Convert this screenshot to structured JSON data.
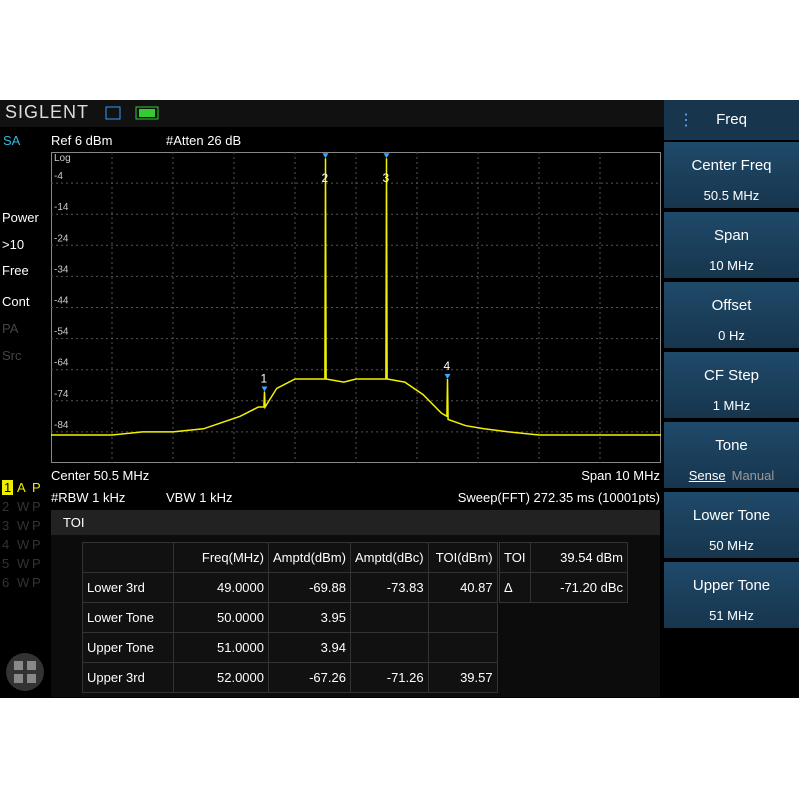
{
  "header": {
    "brand": "SIGLENT"
  },
  "left_panel": {
    "mode": "SA",
    "items": [
      "Power",
      ">10",
      "Free",
      "Cont",
      "PA",
      "Src"
    ],
    "traces": [
      [
        "1",
        "A",
        "P"
      ],
      [
        "2",
        "W",
        "P"
      ],
      [
        "3",
        "W",
        "P"
      ],
      [
        "4",
        "W",
        "P"
      ],
      [
        "5",
        "W",
        "P"
      ],
      [
        "6",
        "W",
        "P"
      ]
    ]
  },
  "settings": {
    "ref": "Ref  6 dBm",
    "atten": "#Atten  26 dB",
    "center": "Center  50.5 MHz",
    "span": "Span  10 MHz",
    "rbw": "#RBW  1 kHz",
    "vbw": "VBW  1 kHz",
    "sweep": "Sweep(FFT)  272.35 ms (10001pts)"
  },
  "plot": {
    "scale": "Log",
    "ylim": [
      -94,
      6
    ],
    "yticks": [
      -4,
      -14,
      -24,
      -34,
      -44,
      -54,
      -64,
      -74,
      -84
    ],
    "xlim": [
      45.5,
      55.5
    ],
    "color": "#f2f200",
    "trace": {
      "x": [
        45.5,
        46,
        46.5,
        47,
        47.5,
        48,
        48.3,
        48.6,
        48.9,
        48.99,
        49.0,
        49.01,
        49.2,
        49.5,
        49.8,
        49.99,
        50.0,
        50.01,
        50.3,
        50.5,
        50.7,
        50.99,
        51.0,
        51.01,
        51.3,
        51.6,
        51.9,
        51.99,
        52.0,
        52.01,
        52.3,
        52.6,
        53,
        53.5,
        54,
        54.5,
        55,
        55.5
      ],
      "values": [
        -85,
        -85,
        -85,
        -84,
        -84,
        -83,
        -81,
        -79,
        -76,
        -76,
        -71,
        -76,
        -70,
        -67,
        -67,
        -67,
        4,
        -67,
        -68,
        -67,
        -67,
        -67,
        4,
        -67,
        -68,
        -72,
        -78,
        -79,
        -67,
        -80,
        -82,
        -83,
        -84,
        -85,
        -85,
        -85,
        -85,
        -85
      ]
    },
    "markers": [
      {
        "label": "1",
        "x": 49.0,
        "y": -71
      },
      {
        "label": "2",
        "x": 50.0,
        "y": 4
      },
      {
        "label": "3",
        "x": 51.0,
        "y": 4
      },
      {
        "label": "4",
        "x": 52.0,
        "y": -67
      }
    ]
  },
  "toi": {
    "title": "TOI",
    "columns": [
      "Freq(MHz)",
      "Amptd(dBm)",
      "Amptd(dBc)",
      "TOI(dBm)"
    ],
    "rows": [
      {
        "name": "Lower 3rd",
        "cells": [
          "49.0000",
          "-69.88",
          "-73.83",
          "40.87"
        ]
      },
      {
        "name": "Lower Tone",
        "cells": [
          "50.0000",
          "3.95"
        ]
      },
      {
        "name": "Upper Tone",
        "cells": [
          "51.0000",
          "3.94"
        ]
      },
      {
        "name": "Upper 3rd",
        "cells": [
          "52.0000",
          "-67.26",
          "-71.26",
          "39.57"
        ]
      }
    ],
    "summary": [
      [
        "TOI",
        "39.54 dBm"
      ],
      [
        "Δ",
        "-71.20 dBc"
      ]
    ]
  },
  "menu": {
    "title": "Freq",
    "items": [
      {
        "label": "Center Freq",
        "value": "50.5 MHz"
      },
      {
        "label": "Span",
        "value": "10 MHz"
      },
      {
        "label": "Offset",
        "value": "0 Hz"
      },
      {
        "label": "CF Step",
        "value": "1 MHz"
      },
      {
        "label": "Tone",
        "options": [
          "Sense",
          "Manual"
        ]
      },
      {
        "label": "Lower Tone",
        "value": "50 MHz"
      },
      {
        "label": "Upper Tone",
        "value": "51 MHz"
      }
    ]
  }
}
